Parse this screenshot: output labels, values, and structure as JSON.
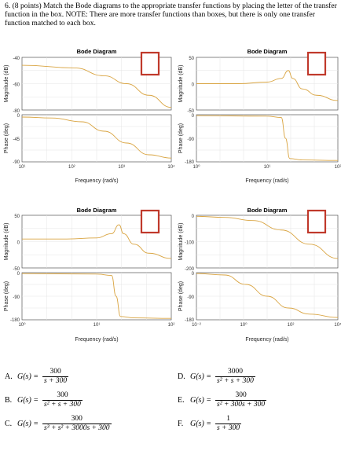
{
  "question": {
    "text": "6.  (8 points) Match the Bode diagrams to the appropriate transfer functions by placing the letter of the transfer function in the box.  NOTE:  There are more transfer functions than boxes, but there is only one transfer function matched to each box."
  },
  "plots": [
    {
      "title": "Bode Diagram",
      "mag_ylabel": "Magnitude (dB)",
      "phase_ylabel": "Phase (deg)",
      "xlabel": "Frequency  (rad/s)",
      "mag_ticks": [
        "-40",
        "-60",
        "-80"
      ],
      "phase_ticks": [
        "0",
        "-45",
        "-90"
      ],
      "x_ticks": [
        "10¹",
        "10²",
        "10³",
        "10⁴"
      ],
      "box_color": "#c0392b",
      "line_color": "#d9a441"
    },
    {
      "title": "Bode Diagram",
      "mag_ylabel": "Magnitude (dB)",
      "phase_ylabel": "Phase (deg)",
      "xlabel": "Frequency  (rad/s)",
      "mag_ticks": [
        "50",
        "0",
        "-50"
      ],
      "phase_ticks": [
        "0",
        "-90",
        "-180"
      ],
      "x_ticks": [
        "10⁰",
        "10¹",
        "10²"
      ],
      "box_color": "#c0392b",
      "line_color": "#d9a441"
    },
    {
      "title": "Bode Diagram",
      "mag_ylabel": "Magnitude (dB)",
      "phase_ylabel": "Phase (deg)",
      "xlabel": "Frequency  (rad/s)",
      "mag_ticks": [
        "50",
        "0",
        "-50"
      ],
      "phase_ticks": [
        "0",
        "-90",
        "-180"
      ],
      "x_ticks": [
        "10⁰",
        "10¹",
        "10²"
      ],
      "box_color": "#c0392b",
      "line_color": "#d9a441"
    },
    {
      "title": "Bode Diagram",
      "mag_ylabel": "Magnitude (dB)",
      "phase_ylabel": "Phase (deg)",
      "xlabel": "Frequency  (rad/s)",
      "mag_ticks": [
        "0",
        "-100",
        "-200"
      ],
      "phase_ticks": [
        "0",
        "-90",
        "-180"
      ],
      "x_ticks": [
        "10⁻²",
        "10⁰",
        "10²",
        "10⁴"
      ],
      "box_color": "#c0392b",
      "line_color": "#d9a441"
    }
  ],
  "answers": [
    {
      "letter": "A.",
      "lhs": "G(s) =",
      "num": "300",
      "den": "s + 300"
    },
    {
      "letter": "B.",
      "lhs": "G(s) =",
      "num": "300",
      "den": "s² + s + 300"
    },
    {
      "letter": "C.",
      "lhs": "G(s) =",
      "num": "300",
      "den": "s³ + s² + 3000s + 300"
    },
    {
      "letter": "D.",
      "lhs": "G(s) =",
      "num": "3000",
      "den": "s² + s + 300"
    },
    {
      "letter": "E.",
      "lhs": "G(s) =",
      "num": "300",
      "den": "s² + 300s + 300"
    },
    {
      "letter": "F.",
      "lhs": "G(s) =",
      "num": "1",
      "den": "s + 300"
    }
  ]
}
